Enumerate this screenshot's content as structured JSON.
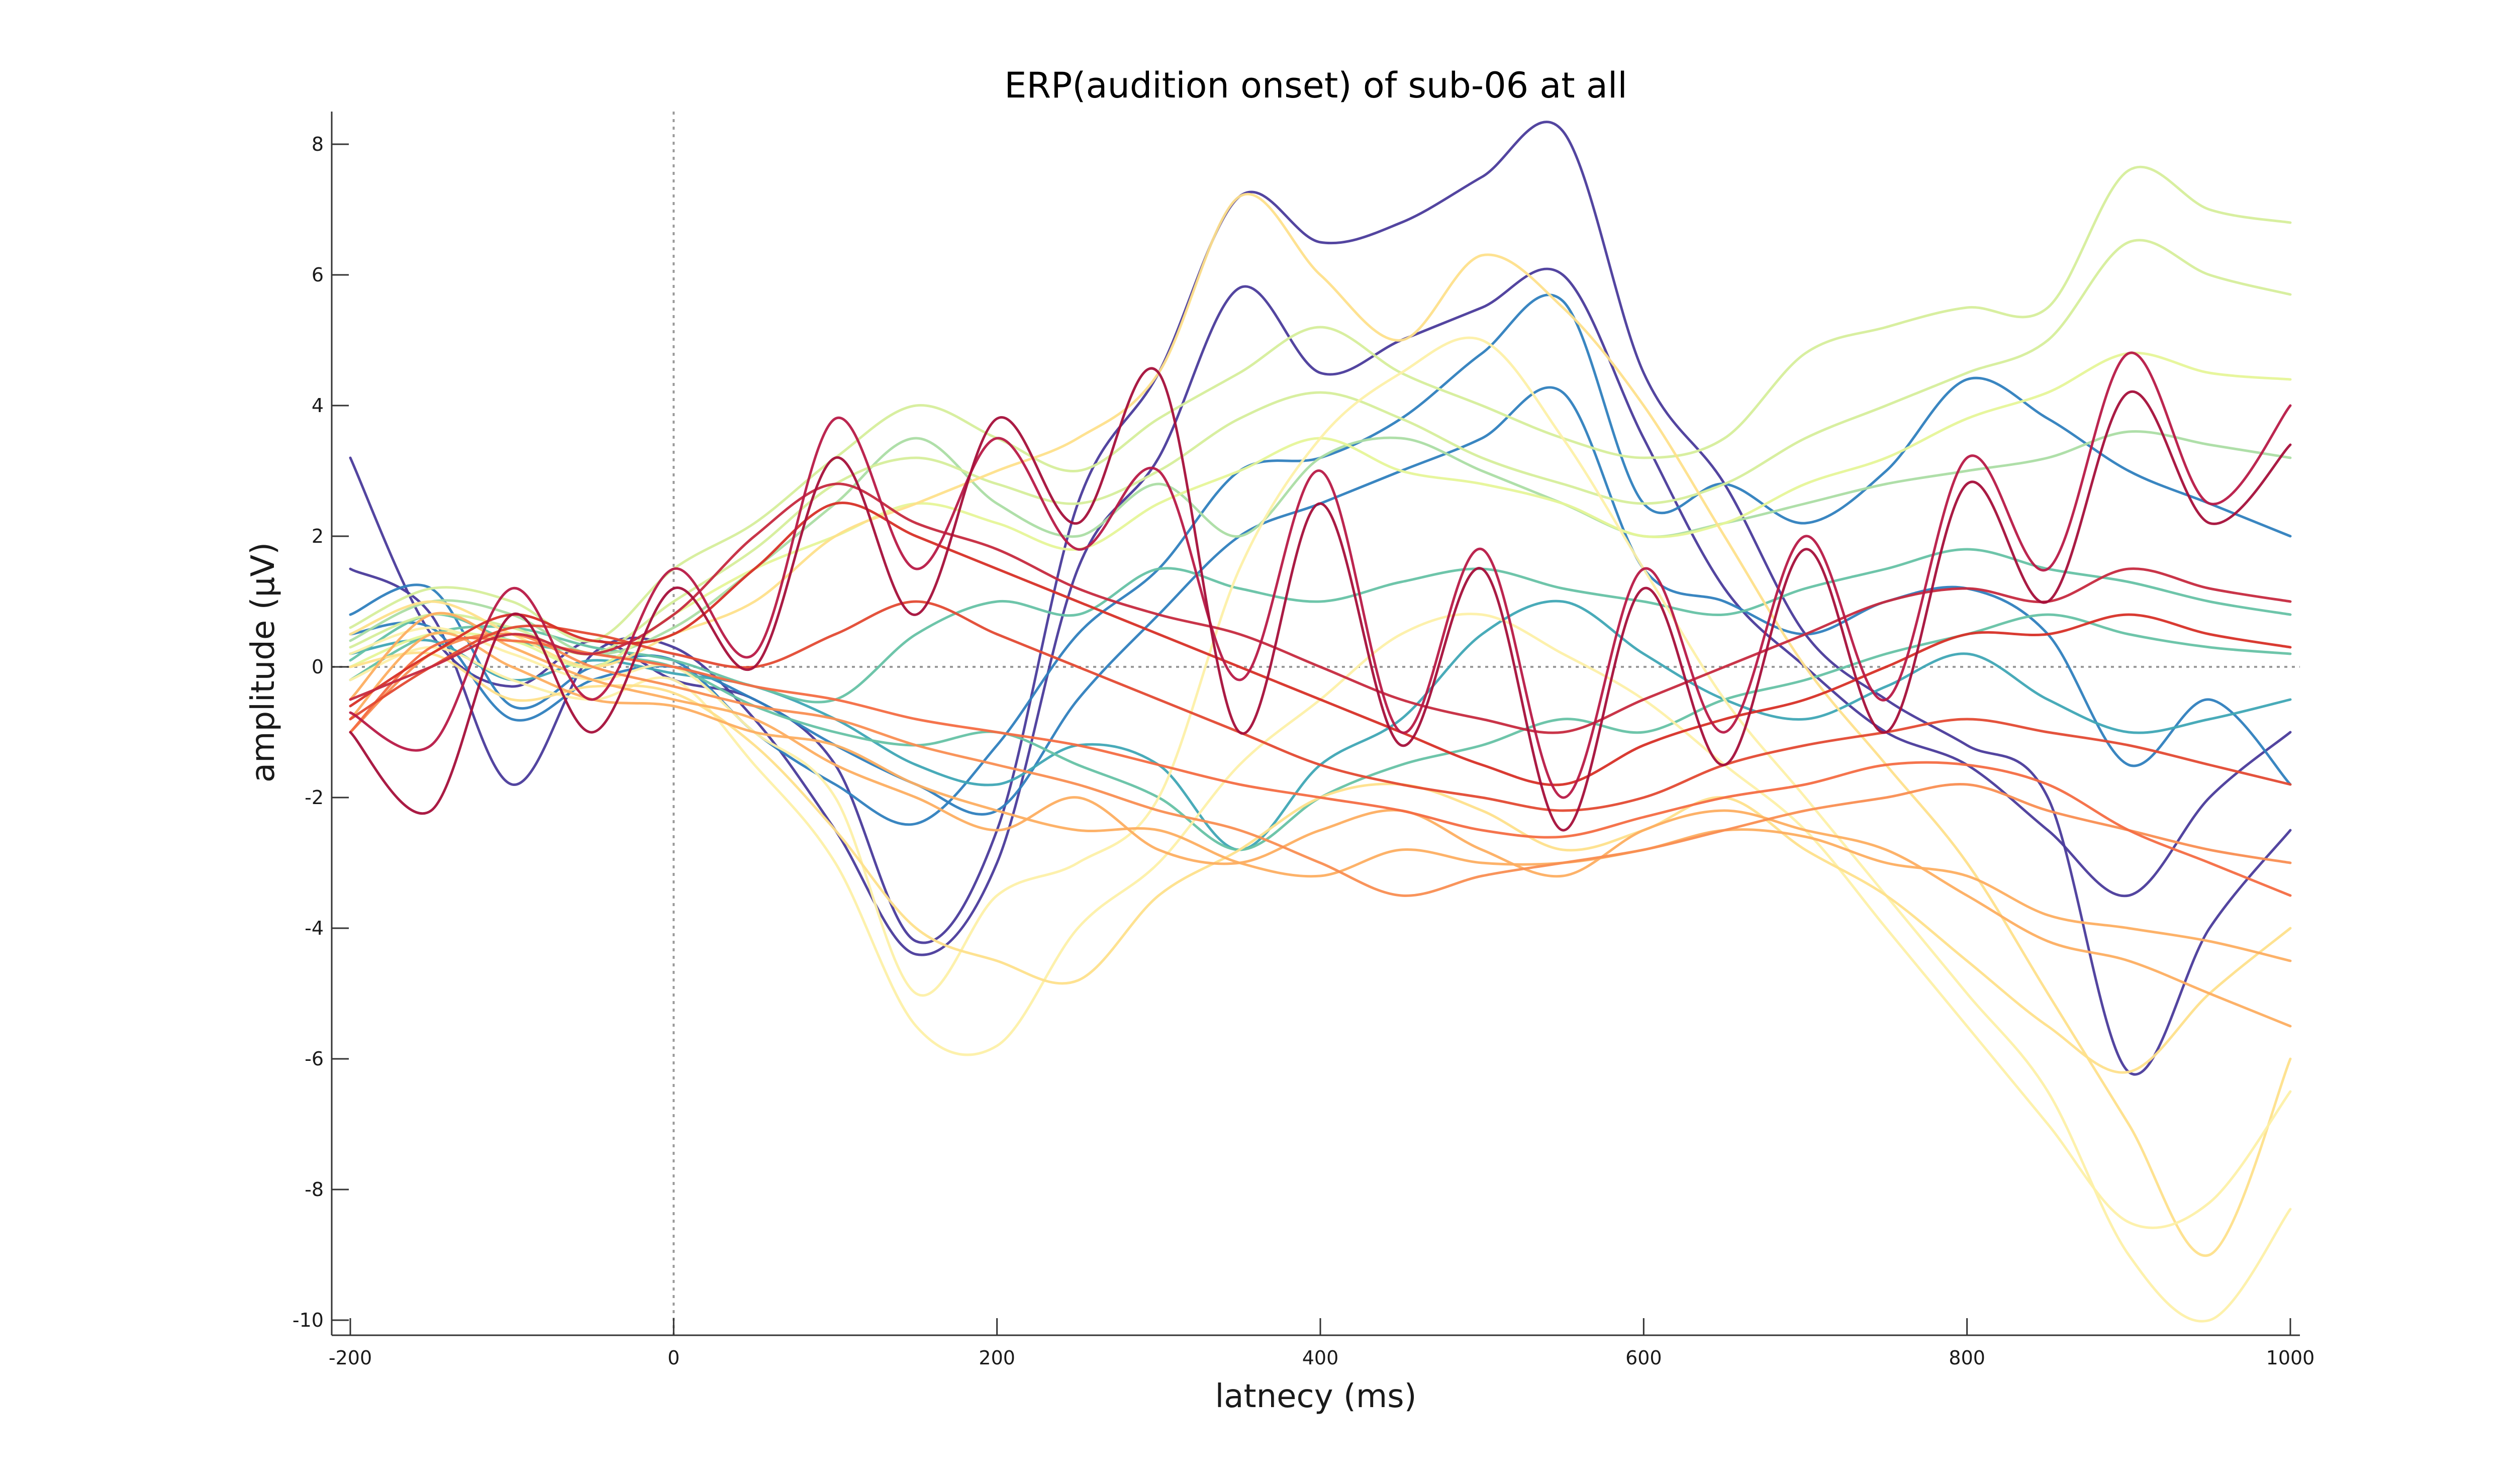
{
  "chart_data": {
    "type": "line",
    "title": "ERP(audition onset) of sub-06 at all",
    "xlabel": "latnecy (ms)",
    "ylabel": "amplitude (µV)",
    "xlim": [
      -200,
      1000
    ],
    "ylim": [
      -10,
      8.5
    ],
    "xticks": [
      -200,
      0,
      200,
      400,
      600,
      800,
      1000
    ],
    "yticks": [
      -10,
      -8,
      -6,
      -4,
      -2,
      0,
      2,
      4,
      6,
      8
    ],
    "grid": false,
    "legend": "none",
    "reference_lines": [
      {
        "axis": "x",
        "value": 0,
        "style": "dotted"
      },
      {
        "axis": "y",
        "value": 0,
        "style": "dotted"
      }
    ],
    "colormap": "spectral",
    "x": [
      -200,
      -150,
      -100,
      -50,
      0,
      50,
      100,
      150,
      200,
      250,
      300,
      350,
      400,
      450,
      500,
      550,
      600,
      650,
      700,
      750,
      800,
      850,
      900,
      950,
      1000
    ],
    "series": [
      {
        "color": "#4a3b9b",
        "values": [
          3.2,
          0.5,
          -0.3,
          0.4,
          -0.2,
          -0.5,
          -1.5,
          -4.2,
          -2.5,
          2.5,
          4.5,
          7.2,
          6.5,
          6.8,
          7.5,
          8.2,
          4.5,
          2.8,
          0.5,
          -0.5,
          -1.2,
          -2.0,
          -6.2,
          -4.0,
          -2.5
        ]
      },
      {
        "color": "#4a3b9b",
        "values": [
          1.5,
          0.8,
          -1.8,
          0.2,
          0.3,
          -0.8,
          -2.5,
          -4.4,
          -3.0,
          1.5,
          3.2,
          5.8,
          4.5,
          5.0,
          5.5,
          6.0,
          3.5,
          1.2,
          0.0,
          -1.0,
          -1.5,
          -2.5,
          -3.5,
          -2.0,
          -1.0
        ]
      },
      {
        "color": "#2f7fbe",
        "values": [
          0.8,
          1.2,
          -0.6,
          0.0,
          0.1,
          -1.0,
          -1.8,
          -2.4,
          -1.2,
          0.5,
          1.5,
          3.0,
          3.2,
          3.8,
          4.8,
          5.6,
          2.5,
          2.8,
          2.2,
          3.0,
          4.4,
          3.8,
          3.0,
          2.5,
          2.0
        ]
      },
      {
        "color": "#2f7fbe",
        "values": [
          0.5,
          0.6,
          -0.8,
          -0.2,
          0.0,
          -0.5,
          -1.2,
          -1.8,
          -2.2,
          -0.5,
          0.8,
          2.0,
          2.5,
          3.0,
          3.5,
          4.2,
          1.5,
          1.0,
          0.5,
          1.0,
          1.2,
          0.5,
          -1.5,
          -0.5,
          -1.8
        ]
      },
      {
        "color": "#3fa6b5",
        "values": [
          0.2,
          0.4,
          -0.2,
          0.1,
          -0.1,
          -0.3,
          -0.8,
          -1.5,
          -1.8,
          -1.2,
          -1.5,
          -2.8,
          -1.5,
          -0.8,
          0.5,
          1.0,
          0.2,
          -0.5,
          -0.8,
          -0.3,
          0.2,
          -0.5,
          -1.0,
          -0.8,
          -0.5
        ]
      },
      {
        "color": "#66c2a5",
        "values": [
          0.1,
          0.8,
          0.4,
          0.2,
          0.0,
          -0.6,
          -1.0,
          -1.2,
          -1.0,
          -1.5,
          -2.0,
          -2.8,
          -2.0,
          -1.5,
          -1.2,
          -0.8,
          -1.0,
          -0.5,
          -0.2,
          0.2,
          0.5,
          0.8,
          0.5,
          0.3,
          0.2
        ]
      },
      {
        "color": "#66c2a5",
        "values": [
          -0.2,
          0.5,
          0.6,
          0.3,
          0.1,
          -0.3,
          -0.5,
          0.5,
          1.0,
          0.8,
          1.5,
          1.2,
          1.0,
          1.3,
          1.5,
          1.2,
          1.0,
          0.8,
          1.2,
          1.5,
          1.8,
          1.5,
          1.3,
          1.0,
          0.8
        ]
      },
      {
        "color": "#abdda4",
        "values": [
          0.4,
          1.0,
          0.8,
          0.2,
          0.6,
          1.5,
          2.5,
          3.5,
          2.5,
          2.0,
          2.8,
          2.0,
          3.2,
          3.5,
          3.0,
          2.5,
          2.0,
          2.2,
          2.5,
          2.8,
          3.0,
          3.2,
          3.6,
          3.4,
          3.2
        ]
      },
      {
        "color": "#d6ee9b",
        "values": [
          0.6,
          1.2,
          1.0,
          0.4,
          1.5,
          2.2,
          3.2,
          4.0,
          3.5,
          3.0,
          3.8,
          4.5,
          5.2,
          4.5,
          4.0,
          3.5,
          3.2,
          3.5,
          4.8,
          5.2,
          5.5,
          5.5,
          7.6,
          7.0,
          6.8
        ]
      },
      {
        "color": "#d6ee9b",
        "values": [
          0.3,
          0.8,
          0.6,
          0.2,
          1.0,
          1.8,
          2.8,
          3.2,
          2.8,
          2.5,
          3.0,
          3.8,
          4.2,
          3.8,
          3.2,
          2.8,
          2.5,
          2.8,
          3.5,
          4.0,
          4.5,
          5.0,
          6.5,
          6.0,
          5.7
        ]
      },
      {
        "color": "#e6f598",
        "values": [
          0.0,
          0.5,
          0.4,
          0.0,
          0.8,
          1.5,
          2.0,
          2.5,
          2.2,
          1.8,
          2.5,
          3.0,
          3.5,
          3.0,
          2.8,
          2.5,
          2.0,
          2.2,
          2.8,
          3.2,
          3.8,
          4.2,
          4.8,
          4.5,
          4.4
        ]
      },
      {
        "color": "#fee08b",
        "values": [
          0.5,
          1.0,
          0.5,
          0.0,
          0.5,
          1.0,
          2.0,
          2.5,
          3.0,
          3.5,
          4.5,
          7.2,
          6.0,
          5.0,
          6.3,
          5.5,
          4.0,
          2.0,
          0.0,
          -1.5,
          -3.0,
          -5.0,
          -7.0,
          -9.0,
          -6.0
        ]
      },
      {
        "color": "#fdf0a8",
        "values": [
          0.2,
          0.6,
          0.2,
          -0.2,
          0.0,
          -1.0,
          -2.0,
          -5.0,
          -3.5,
          -3.0,
          -2.0,
          1.5,
          3.5,
          4.5,
          5.0,
          3.5,
          1.5,
          -0.5,
          -2.0,
          -3.5,
          -5.0,
          -6.5,
          -9.0,
          -10.0,
          -8.3
        ]
      },
      {
        "color": "#fdf0a8",
        "values": [
          -0.2,
          0.3,
          -0.2,
          -0.5,
          -0.2,
          -1.5,
          -3.0,
          -5.5,
          -5.8,
          -4.0,
          -3.0,
          -1.5,
          -0.5,
          0.5,
          0.8,
          0.2,
          -0.5,
          -1.5,
          -2.5,
          -4.0,
          -5.5,
          -7.0,
          -8.5,
          -8.2,
          -6.5
        ]
      },
      {
        "color": "#fee08b",
        "values": [
          0.0,
          0.2,
          -0.5,
          -0.3,
          -0.4,
          -1.2,
          -2.5,
          -4.0,
          -4.5,
          -4.8,
          -3.5,
          -2.8,
          -2.0,
          -1.8,
          -2.2,
          -2.8,
          -2.5,
          -2.0,
          -2.8,
          -3.5,
          -4.5,
          -5.5,
          -6.2,
          -5.0,
          -4.0
        ]
      },
      {
        "color": "#fdae61",
        "values": [
          -0.5,
          0.8,
          0.3,
          -0.2,
          -0.5,
          -0.8,
          -1.5,
          -2.0,
          -2.5,
          -2.0,
          -2.8,
          -3.0,
          -2.5,
          -2.2,
          -2.8,
          -3.2,
          -2.5,
          -2.2,
          -2.5,
          -2.8,
          -3.5,
          -4.2,
          -4.5,
          -5.0,
          -5.5
        ]
      },
      {
        "color": "#fdae61",
        "values": [
          -0.8,
          0.5,
          0.0,
          -0.5,
          -0.6,
          -1.0,
          -1.2,
          -1.8,
          -2.2,
          -2.5,
          -2.5,
          -3.0,
          -3.2,
          -2.8,
          -3.0,
          -3.0,
          -2.8,
          -2.5,
          -2.6,
          -3.0,
          -3.2,
          -3.8,
          -4.0,
          -4.2,
          -4.5
        ]
      },
      {
        "color": "#f98e52",
        "values": [
          -1.0,
          0.2,
          0.5,
          0.0,
          -0.3,
          -0.6,
          -0.8,
          -1.2,
          -1.5,
          -1.8,
          -2.2,
          -2.5,
          -3.0,
          -3.5,
          -3.2,
          -3.0,
          -2.8,
          -2.5,
          -2.2,
          -2.0,
          -1.8,
          -2.2,
          -2.5,
          -2.8,
          -3.0
        ]
      },
      {
        "color": "#f46d43",
        "values": [
          -1.0,
          0.3,
          0.4,
          0.2,
          0.0,
          -0.3,
          -0.5,
          -0.8,
          -1.0,
          -1.2,
          -1.5,
          -1.8,
          -2.0,
          -2.2,
          -2.5,
          -2.6,
          -2.3,
          -2.0,
          -1.8,
          -1.5,
          -1.5,
          -1.8,
          -2.5,
          -3.0,
          -3.5
        ]
      },
      {
        "color": "#e34a33",
        "values": [
          -0.8,
          0.0,
          0.6,
          0.5,
          0.2,
          0.0,
          0.5,
          1.0,
          0.5,
          0.0,
          -0.5,
          -1.0,
          -1.5,
          -1.8,
          -2.0,
          -2.2,
          -2.0,
          -1.5,
          -1.2,
          -1.0,
          -0.8,
          -1.0,
          -1.2,
          -1.5,
          -1.8
        ]
      },
      {
        "color": "#d73027",
        "values": [
          -0.6,
          0.2,
          0.8,
          0.4,
          0.5,
          1.5,
          2.5,
          2.0,
          1.5,
          1.0,
          0.5,
          0.0,
          -0.5,
          -1.0,
          -1.5,
          -1.8,
          -1.2,
          -0.8,
          -0.5,
          0.0,
          0.5,
          0.5,
          0.8,
          0.5,
          0.3
        ]
      },
      {
        "color": "#c62a3f",
        "values": [
          -0.5,
          0.0,
          0.5,
          0.2,
          0.8,
          2.0,
          2.8,
          2.2,
          1.8,
          1.2,
          0.8,
          0.5,
          0.0,
          -0.5,
          -0.8,
          -1.0,
          -0.5,
          0.0,
          0.5,
          1.0,
          1.2,
          1.0,
          1.5,
          1.2,
          1.0
        ]
      },
      {
        "color": "#b81a47",
        "values": [
          -0.7,
          -1.2,
          1.2,
          -0.5,
          1.5,
          0.2,
          3.8,
          1.5,
          3.5,
          1.8,
          3.0,
          -0.2,
          3.0,
          -1.0,
          1.8,
          -2.0,
          1.5,
          -1.0,
          2.0,
          -0.5,
          3.2,
          1.5,
          4.8,
          2.5,
          4.0
        ]
      },
      {
        "color": "#a50f3a",
        "values": [
          -1.0,
          -2.2,
          0.8,
          -1.0,
          1.2,
          0.0,
          3.2,
          0.8,
          3.8,
          2.2,
          4.5,
          -1.0,
          2.5,
          -1.2,
          1.5,
          -2.5,
          1.2,
          -1.5,
          1.8,
          -1.0,
          2.8,
          1.0,
          4.2,
          2.2,
          3.4
        ]
      }
    ]
  }
}
